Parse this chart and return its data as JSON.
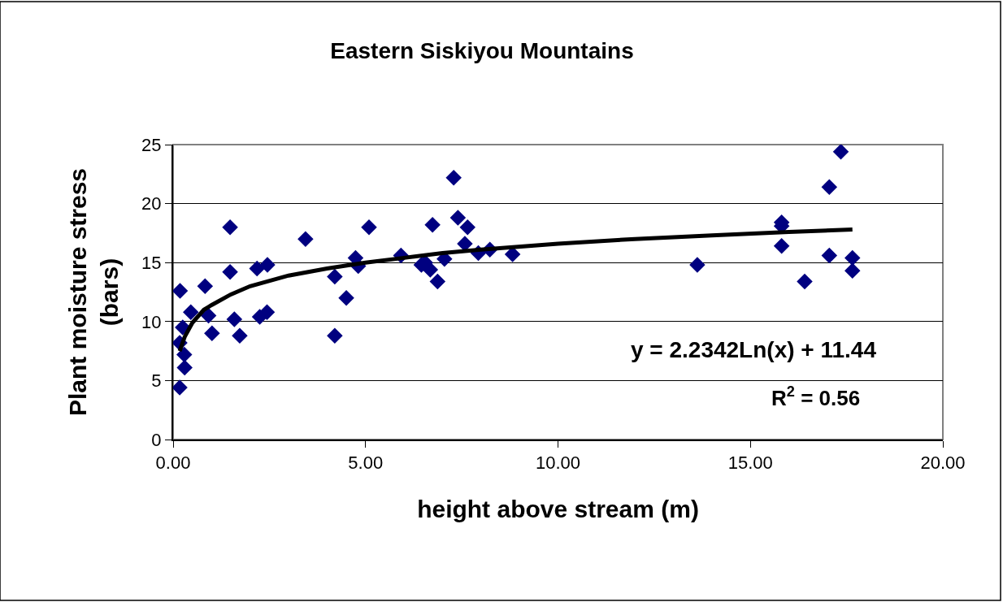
{
  "chart_data": {
    "type": "scatter",
    "title": "Eastern Siskiyou Mountains",
    "xlabel": "height above stream (m)",
    "ylabel": "Plant moisture stress (bars)",
    "xlim": [
      0,
      20
    ],
    "xticks": [
      {
        "value": 0,
        "label": "0.00"
      },
      {
        "value": 5,
        "label": "5.00"
      },
      {
        "value": 10,
        "label": "10.00"
      },
      {
        "value": 15,
        "label": "15.00"
      },
      {
        "value": 20,
        "label": "20.00"
      }
    ],
    "ylim": [
      0,
      25
    ],
    "yticks": [
      0,
      5,
      10,
      15,
      20,
      25
    ],
    "grid": "y",
    "legend": false,
    "marker": "diamond",
    "annotations": [
      "y = 2.2342Ln(x) + 11.44",
      "R$^{2}$ = 0.56"
    ],
    "series": [
      {
        "color": "#000080",
        "x": [
          0.18,
          0.83,
          1.48,
          1.48,
          3.44,
          2.18,
          2.45,
          4.2,
          4.5,
          4.2,
          5.09,
          4.74,
          4.81,
          5.92,
          0.46,
          0.25,
          0.17,
          0.29,
          0.3,
          0.17,
          0.92,
          1.01,
          1.59,
          1.73,
          2.25,
          2.44,
          7.29,
          6.74,
          7.4,
          7.65,
          7.58,
          7.93,
          8.23,
          8.82,
          7.05,
          6.45,
          6.55,
          6.68,
          6.87,
          17.35,
          17.05,
          15.81,
          15.81,
          15.81,
          13.62,
          16.41,
          17.05,
          17.65,
          17.65
        ],
        "values": [
          12.6,
          13.0,
          18.0,
          14.2,
          17.0,
          14.5,
          14.8,
          13.8,
          12.0,
          8.8,
          18.0,
          15.4,
          14.7,
          15.6,
          10.8,
          9.5,
          8.2,
          7.2,
          6.1,
          4.4,
          10.5,
          9.0,
          10.2,
          8.8,
          10.4,
          10.8,
          22.2,
          18.2,
          18.8,
          18.0,
          16.6,
          15.8,
          16.1,
          15.7,
          15.3,
          14.8,
          15.0,
          14.4,
          13.4,
          24.4,
          21.4,
          18.4,
          18.1,
          16.4,
          14.8,
          13.4,
          15.6,
          15.4,
          14.3
        ]
      },
      {
        "type": "line",
        "color": "#000000",
        "marker": "none",
        "x": [
          0.17,
          0.3,
          0.5,
          0.8,
          1,
          1.5,
          2,
          3,
          4,
          5,
          6,
          7,
          8,
          10,
          12,
          14,
          16,
          17.65
        ],
        "values": [
          7.5,
          8.7,
          9.9,
          11.0,
          11.4,
          12.3,
          13.0,
          13.9,
          14.5,
          15.0,
          15.4,
          15.8,
          16.1,
          16.6,
          17.0,
          17.3,
          17.6,
          17.8
        ]
      }
    ]
  }
}
